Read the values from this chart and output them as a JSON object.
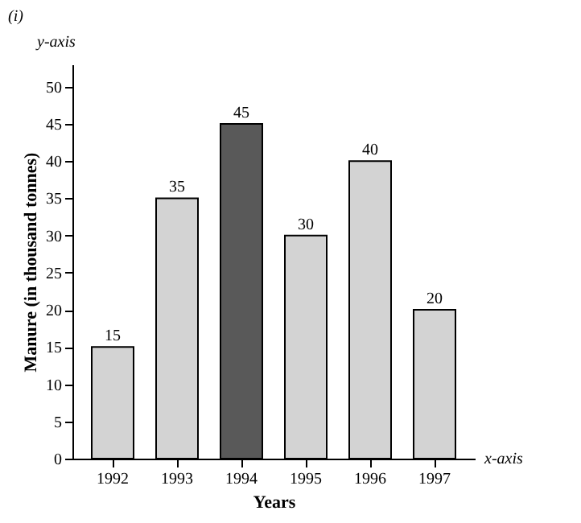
{
  "chart_data": {
    "type": "bar",
    "categories": [
      "1992",
      "1993",
      "1994",
      "1995",
      "1996",
      "1997"
    ],
    "values": [
      15,
      35,
      45,
      30,
      40,
      20
    ],
    "colors": [
      "#d3d3d3",
      "#d3d3d3",
      "#595959",
      "#d3d3d3",
      "#d3d3d3",
      "#d3d3d3"
    ],
    "ylim": [
      0,
      53
    ],
    "yticks": [
      0,
      5,
      10,
      15,
      20,
      25,
      30,
      35,
      40,
      45,
      50
    ],
    "xlabel": "Years",
    "ylabel": "Manure (in thousand tonnes)",
    "annotations": [
      "(i)",
      "y-axis",
      "x-axis"
    ],
    "data_labels": true,
    "grid": false
  }
}
